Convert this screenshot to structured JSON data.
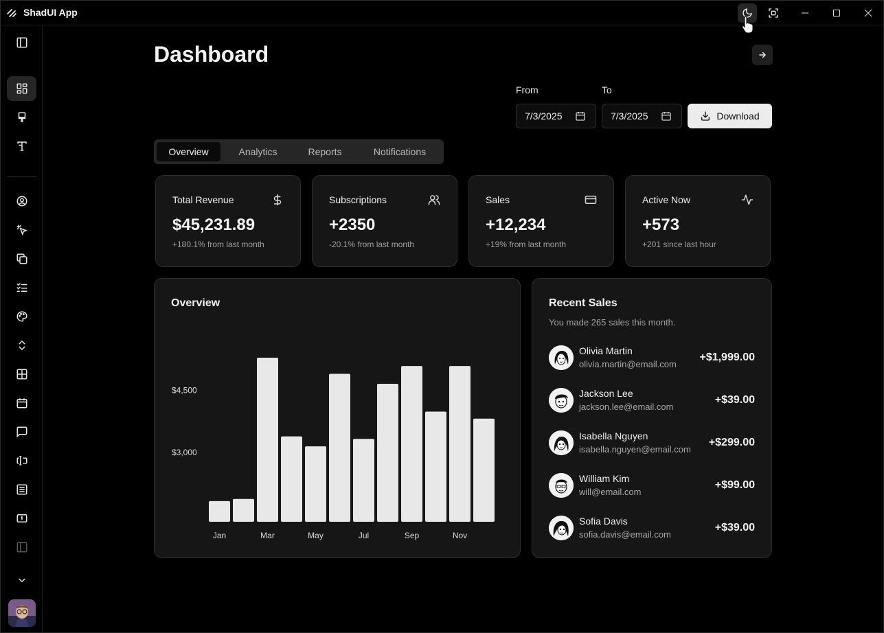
{
  "app": {
    "title": "ShadUI App"
  },
  "page": {
    "title": "Dashboard"
  },
  "dates": {
    "from_label": "From",
    "to_label": "To",
    "from_value": "7/3/2025",
    "to_value": "7/3/2025",
    "download_label": "Download"
  },
  "tabs": [
    {
      "label": "Overview"
    },
    {
      "label": "Analytics"
    },
    {
      "label": "Reports"
    },
    {
      "label": "Notifications"
    }
  ],
  "stats": [
    {
      "title": "Total Revenue",
      "value": "$45,231.89",
      "sub": "+180.1% from last month",
      "icon": "dollar-icon"
    },
    {
      "title": "Subscriptions",
      "value": "+2350",
      "sub": "-20.1% from last month",
      "icon": "users-icon"
    },
    {
      "title": "Sales",
      "value": "+12,234",
      "sub": "+19% from last month",
      "icon": "credit-card-icon"
    },
    {
      "title": "Active Now",
      "value": "+573",
      "sub": "+201 since last hour",
      "icon": "activity-icon"
    }
  ],
  "overview": {
    "title": "Overview"
  },
  "chart_data": {
    "type": "bar",
    "title": "Overview",
    "categories": [
      "Jan",
      "Feb",
      "Mar",
      "Apr",
      "May",
      "Jun",
      "Jul",
      "Aug",
      "Sep",
      "Oct",
      "Nov",
      "Dec"
    ],
    "tick_labels": [
      "Jan",
      "",
      "Mar",
      "",
      "May",
      "",
      "Jul",
      "",
      "Sep",
      "",
      "Nov",
      ""
    ],
    "values": [
      1830,
      1880,
      5290,
      3390,
      3150,
      4900,
      3330,
      4660,
      5090,
      3990,
      5090,
      3820
    ],
    "yticks": [
      {
        "value": 3000,
        "label": "$3,000"
      },
      {
        "value": 4500,
        "label": "$4,500"
      }
    ],
    "ylim": [
      1330,
      5290
    ],
    "color": "#e8e8e8"
  },
  "recent_sales": {
    "title": "Recent Sales",
    "subtitle": "You made 265 sales this month.",
    "items": [
      {
        "name": "Olivia Martin",
        "email": "olivia.martin@email.com",
        "amount": "+$1,999.00"
      },
      {
        "name": "Jackson Lee",
        "email": "jackson.lee@email.com",
        "amount": "+$39.00"
      },
      {
        "name": "Isabella Nguyen",
        "email": "isabella.nguyen@email.com",
        "amount": "+$299.00"
      },
      {
        "name": "William Kim",
        "email": "will@email.com",
        "amount": "+$99.00"
      },
      {
        "name": "Sofia Davis",
        "email": "sofia.davis@email.com",
        "amount": "+$39.00"
      }
    ]
  },
  "colors": {
    "background": "#000000",
    "card": "#161616",
    "border": "#2e2e2e",
    "bar": "#e8e8e8",
    "muted_text": "#a0a0a0"
  }
}
